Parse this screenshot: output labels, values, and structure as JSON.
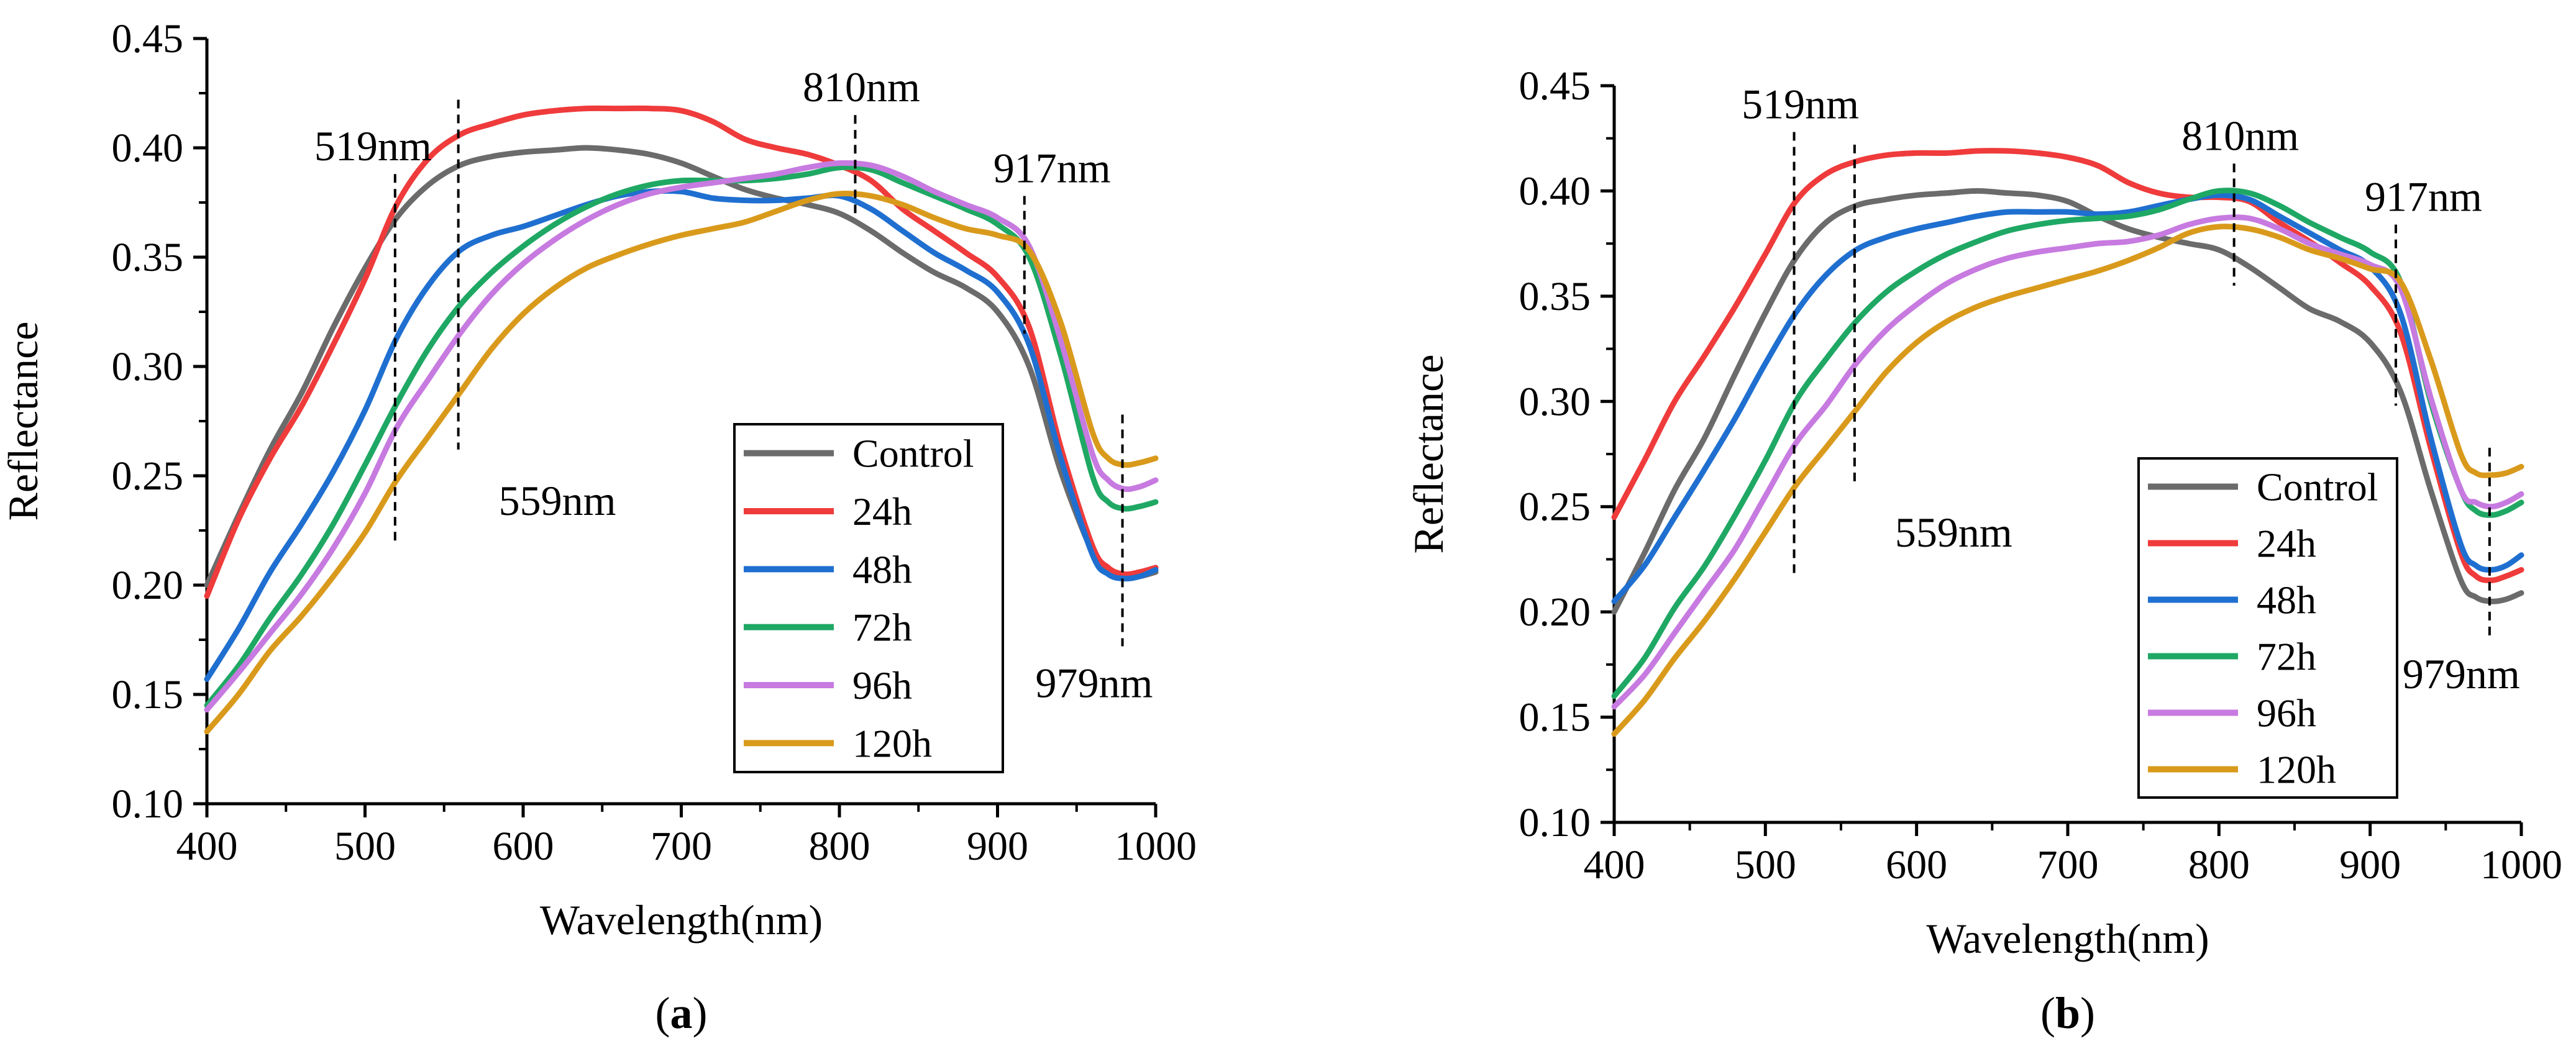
{
  "chart_data": [
    {
      "type": "line",
      "panel_label": "(a)",
      "panel_letter": "a",
      "xlabel": "Wavelength(nm)",
      "ylabel": "Reflectance",
      "xlim": [
        400,
        1000
      ],
      "ylim": [
        0.1,
        0.45
      ],
      "xticks": [
        "400",
        "500",
        "600",
        "700",
        "800",
        "900",
        "1000"
      ],
      "yticks": [
        "0.10",
        "0.15",
        "0.20",
        "0.25",
        "0.30",
        "0.35",
        "0.40",
        "0.45"
      ],
      "legend_position": "right-center",
      "annotations": [
        {
          "label": "519nm",
          "x": 519,
          "line_from": 0.218,
          "line_to": 0.388,
          "text_pos": "above-left"
        },
        {
          "label": "559nm",
          "x": 559,
          "line_from": 0.262,
          "line_to": 0.422,
          "text_pos": "below-right"
        },
        {
          "label": "810nm",
          "x": 810,
          "line_from": 0.37,
          "line_to": 0.415,
          "text_pos": "above"
        },
        {
          "label": "917nm",
          "x": 917,
          "line_from": 0.315,
          "line_to": 0.378,
          "text_pos": "above-right"
        },
        {
          "label": "979nm",
          "x": 979,
          "line_from": 0.172,
          "line_to": 0.278,
          "text_pos": "below"
        }
      ],
      "series": [
        {
          "name": "Control",
          "color": "#6b6b6b",
          "x": [
            400,
            420,
            440,
            460,
            480,
            500,
            520,
            540,
            560,
            580,
            600,
            620,
            640,
            660,
            680,
            700,
            720,
            740,
            760,
            780,
            800,
            820,
            840,
            860,
            880,
            900,
            920,
            940,
            960,
            970,
            980,
            990,
            1000
          ],
          "y": [
            0.2,
            0.232,
            0.262,
            0.288,
            0.318,
            0.345,
            0.368,
            0.383,
            0.392,
            0.396,
            0.398,
            0.399,
            0.4,
            0.399,
            0.397,
            0.393,
            0.387,
            0.381,
            0.377,
            0.374,
            0.37,
            0.362,
            0.352,
            0.343,
            0.336,
            0.325,
            0.3,
            0.252,
            0.215,
            0.206,
            0.203,
            0.204,
            0.206
          ]
        },
        {
          "name": "24h",
          "color": "#ef3b3b",
          "x": [
            400,
            420,
            440,
            460,
            480,
            500,
            520,
            540,
            560,
            580,
            600,
            620,
            640,
            660,
            680,
            700,
            720,
            740,
            760,
            780,
            800,
            820,
            840,
            860,
            880,
            900,
            920,
            940,
            960,
            970,
            980,
            990,
            1000
          ],
          "y": [
            0.195,
            0.23,
            0.258,
            0.282,
            0.31,
            0.34,
            0.374,
            0.395,
            0.406,
            0.411,
            0.415,
            0.417,
            0.418,
            0.418,
            0.418,
            0.417,
            0.412,
            0.404,
            0.4,
            0.397,
            0.392,
            0.385,
            0.372,
            0.362,
            0.352,
            0.341,
            0.318,
            0.263,
            0.218,
            0.208,
            0.205,
            0.206,
            0.208
          ]
        },
        {
          "name": "48h",
          "color": "#1f6fd0",
          "x": [
            400,
            420,
            440,
            460,
            480,
            500,
            520,
            540,
            560,
            580,
            600,
            620,
            640,
            660,
            680,
            700,
            720,
            740,
            760,
            780,
            800,
            820,
            840,
            860,
            880,
            900,
            920,
            940,
            960,
            970,
            980,
            990,
            1000
          ],
          "y": [
            0.157,
            0.18,
            0.206,
            0.228,
            0.252,
            0.28,
            0.313,
            0.337,
            0.353,
            0.36,
            0.364,
            0.369,
            0.374,
            0.378,
            0.38,
            0.38,
            0.377,
            0.376,
            0.376,
            0.377,
            0.378,
            0.372,
            0.362,
            0.352,
            0.344,
            0.334,
            0.31,
            0.258,
            0.214,
            0.205,
            0.203,
            0.204,
            0.207
          ]
        },
        {
          "name": "72h",
          "color": "#1fa864",
          "x": [
            400,
            420,
            440,
            460,
            480,
            500,
            520,
            540,
            560,
            580,
            600,
            620,
            640,
            660,
            680,
            700,
            720,
            740,
            760,
            780,
            800,
            820,
            840,
            860,
            880,
            900,
            920,
            940,
            960,
            970,
            980,
            990,
            1000
          ],
          "y": [
            0.145,
            0.163,
            0.185,
            0.205,
            0.228,
            0.255,
            0.283,
            0.308,
            0.328,
            0.343,
            0.355,
            0.365,
            0.373,
            0.379,
            0.383,
            0.385,
            0.385,
            0.385,
            0.386,
            0.388,
            0.391,
            0.39,
            0.384,
            0.378,
            0.372,
            0.365,
            0.35,
            0.305,
            0.25,
            0.238,
            0.235,
            0.236,
            0.238
          ]
        },
        {
          "name": "96h",
          "color": "#c77ae0",
          "x": [
            400,
            420,
            440,
            460,
            480,
            500,
            520,
            540,
            560,
            580,
            600,
            620,
            640,
            660,
            680,
            700,
            720,
            740,
            760,
            780,
            800,
            820,
            840,
            860,
            880,
            900,
            920,
            940,
            960,
            970,
            980,
            990,
            1000
          ],
          "y": [
            0.143,
            0.16,
            0.178,
            0.196,
            0.217,
            0.242,
            0.272,
            0.294,
            0.315,
            0.333,
            0.347,
            0.358,
            0.367,
            0.374,
            0.379,
            0.382,
            0.384,
            0.386,
            0.388,
            0.391,
            0.393,
            0.392,
            0.387,
            0.38,
            0.374,
            0.368,
            0.355,
            0.312,
            0.26,
            0.248,
            0.244,
            0.245,
            0.248
          ]
        },
        {
          "name": "120h",
          "color": "#d99a1c",
          "x": [
            400,
            420,
            440,
            460,
            480,
            500,
            520,
            540,
            560,
            580,
            600,
            620,
            640,
            660,
            680,
            700,
            720,
            740,
            760,
            780,
            800,
            820,
            840,
            860,
            880,
            900,
            920,
            940,
            960,
            970,
            980,
            990,
            1000
          ],
          "y": [
            0.133,
            0.15,
            0.17,
            0.186,
            0.204,
            0.224,
            0.248,
            0.268,
            0.288,
            0.308,
            0.324,
            0.336,
            0.345,
            0.351,
            0.356,
            0.36,
            0.363,
            0.366,
            0.371,
            0.376,
            0.379,
            0.378,
            0.374,
            0.368,
            0.363,
            0.36,
            0.353,
            0.32,
            0.27,
            0.258,
            0.255,
            0.256,
            0.258
          ]
        }
      ]
    },
    {
      "type": "line",
      "panel_label": "(b)",
      "panel_letter": "b",
      "xlabel": "Wavelength(nm)",
      "ylabel": "Reflectance",
      "xlim": [
        400,
        1000
      ],
      "ylim": [
        0.1,
        0.45
      ],
      "xticks": [
        "400",
        "500",
        "600",
        "700",
        "800",
        "900",
        "1000"
      ],
      "yticks": [
        "0.10",
        "0.15",
        "0.20",
        "0.25",
        "0.30",
        "0.35",
        "0.40",
        "0.45"
      ],
      "legend_position": "bottom-right",
      "annotations": [
        {
          "label": "519nm",
          "x": 519,
          "line_from": 0.218,
          "line_to": 0.428,
          "text_pos": "above"
        },
        {
          "label": "559nm",
          "x": 559,
          "line_from": 0.262,
          "line_to": 0.422,
          "text_pos": "below-right"
        },
        {
          "label": "810nm",
          "x": 810,
          "line_from": 0.355,
          "line_to": 0.413,
          "text_pos": "above"
        },
        {
          "label": "917nm",
          "x": 917,
          "line_from": 0.298,
          "line_to": 0.384,
          "text_pos": "above-right"
        },
        {
          "label": "979nm",
          "x": 979,
          "line_from": 0.188,
          "line_to": 0.278,
          "text_pos": "below"
        }
      ],
      "series": [
        {
          "name": "Control",
          "color": "#6b6b6b",
          "x": [
            400,
            420,
            440,
            460,
            480,
            500,
            520,
            540,
            560,
            580,
            600,
            620,
            640,
            660,
            680,
            700,
            720,
            740,
            760,
            780,
            800,
            820,
            840,
            860,
            880,
            900,
            920,
            940,
            960,
            970,
            980,
            990,
            1000
          ],
          "y": [
            0.2,
            0.228,
            0.258,
            0.283,
            0.313,
            0.342,
            0.368,
            0.385,
            0.393,
            0.396,
            0.398,
            0.399,
            0.4,
            0.399,
            0.398,
            0.395,
            0.388,
            0.382,
            0.378,
            0.375,
            0.372,
            0.364,
            0.354,
            0.344,
            0.338,
            0.328,
            0.305,
            0.258,
            0.215,
            0.207,
            0.205,
            0.206,
            0.209
          ]
        },
        {
          "name": "24h",
          "color": "#ef3b3b",
          "x": [
            400,
            420,
            440,
            460,
            480,
            500,
            520,
            540,
            560,
            580,
            600,
            620,
            640,
            660,
            680,
            700,
            720,
            740,
            760,
            780,
            800,
            820,
            840,
            860,
            880,
            900,
            920,
            940,
            960,
            970,
            980,
            990,
            1000
          ],
          "y": [
            0.245,
            0.272,
            0.3,
            0.322,
            0.345,
            0.37,
            0.395,
            0.408,
            0.414,
            0.417,
            0.418,
            0.418,
            0.419,
            0.419,
            0.418,
            0.416,
            0.412,
            0.404,
            0.399,
            0.397,
            0.397,
            0.395,
            0.385,
            0.376,
            0.366,
            0.355,
            0.333,
            0.278,
            0.228,
            0.217,
            0.215,
            0.217,
            0.22
          ]
        },
        {
          "name": "48h",
          "color": "#1f6fd0",
          "x": [
            400,
            420,
            440,
            460,
            480,
            500,
            520,
            540,
            560,
            580,
            600,
            620,
            640,
            660,
            680,
            700,
            720,
            740,
            760,
            780,
            800,
            820,
            840,
            860,
            880,
            900,
            920,
            940,
            960,
            970,
            980,
            990,
            1000
          ],
          "y": [
            0.205,
            0.222,
            0.245,
            0.268,
            0.292,
            0.318,
            0.342,
            0.36,
            0.372,
            0.378,
            0.382,
            0.385,
            0.388,
            0.39,
            0.39,
            0.39,
            0.389,
            0.39,
            0.393,
            0.396,
            0.398,
            0.396,
            0.388,
            0.38,
            0.372,
            0.364,
            0.342,
            0.283,
            0.232,
            0.222,
            0.22,
            0.222,
            0.227
          ]
        },
        {
          "name": "72h",
          "color": "#1fa864",
          "x": [
            400,
            420,
            440,
            460,
            480,
            500,
            520,
            540,
            560,
            580,
            600,
            620,
            640,
            660,
            680,
            700,
            720,
            740,
            760,
            780,
            800,
            820,
            840,
            860,
            880,
            900,
            920,
            940,
            960,
            970,
            980,
            990,
            1000
          ],
          "y": [
            0.16,
            0.178,
            0.202,
            0.222,
            0.246,
            0.272,
            0.3,
            0.32,
            0.338,
            0.352,
            0.362,
            0.37,
            0.376,
            0.381,
            0.384,
            0.386,
            0.387,
            0.388,
            0.391,
            0.396,
            0.4,
            0.399,
            0.393,
            0.385,
            0.378,
            0.371,
            0.357,
            0.3,
            0.258,
            0.248,
            0.246,
            0.248,
            0.252
          ]
        },
        {
          "name": "96h",
          "color": "#c77ae0",
          "x": [
            400,
            420,
            440,
            460,
            480,
            500,
            520,
            540,
            560,
            580,
            600,
            620,
            640,
            660,
            680,
            700,
            720,
            740,
            760,
            780,
            800,
            820,
            840,
            860,
            880,
            900,
            920,
            940,
            960,
            970,
            980,
            990,
            1000
          ],
          "y": [
            0.155,
            0.17,
            0.19,
            0.21,
            0.23,
            0.255,
            0.28,
            0.298,
            0.318,
            0.334,
            0.346,
            0.356,
            0.363,
            0.368,
            0.371,
            0.373,
            0.375,
            0.376,
            0.379,
            0.384,
            0.387,
            0.387,
            0.382,
            0.375,
            0.37,
            0.365,
            0.354,
            0.302,
            0.258,
            0.252,
            0.25,
            0.252,
            0.256
          ]
        },
        {
          "name": "120h",
          "color": "#d99a1c",
          "x": [
            400,
            420,
            440,
            460,
            480,
            500,
            520,
            540,
            560,
            580,
            600,
            620,
            640,
            660,
            680,
            700,
            720,
            740,
            760,
            780,
            800,
            820,
            840,
            860,
            880,
            900,
            920,
            940,
            960,
            970,
            980,
            990,
            1000
          ],
          "y": [
            0.142,
            0.158,
            0.178,
            0.196,
            0.216,
            0.238,
            0.26,
            0.278,
            0.296,
            0.314,
            0.328,
            0.338,
            0.345,
            0.35,
            0.354,
            0.358,
            0.362,
            0.367,
            0.373,
            0.38,
            0.383,
            0.382,
            0.378,
            0.372,
            0.368,
            0.363,
            0.357,
            0.32,
            0.275,
            0.266,
            0.265,
            0.266,
            0.269
          ]
        }
      ]
    }
  ]
}
